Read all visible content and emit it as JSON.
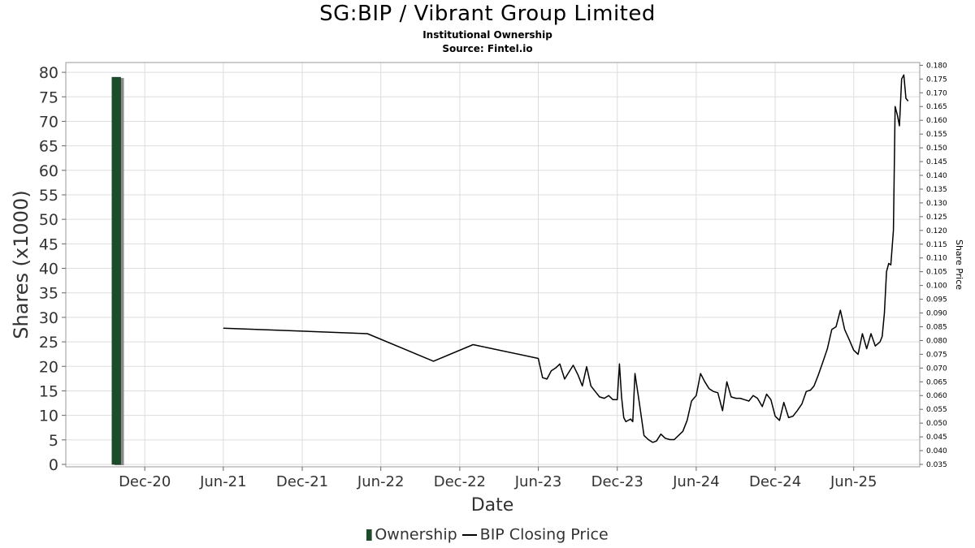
{
  "chart_data": {
    "type": "bar+line",
    "title": "SG:BIP / Vibrant Group Limited",
    "subtitle": "Institutional Ownership",
    "source": "Source: Fintel.io",
    "xlabel": "Date",
    "ylabel_left": "Shares (x1000)",
    "ylabel_right": "Share Price",
    "ylim_left": [
      0,
      82
    ],
    "ylim_right": [
      0.035,
      0.181
    ],
    "yticks_left": [
      "0",
      "5",
      "10",
      "15",
      "20",
      "25",
      "30",
      "35",
      "40",
      "45",
      "50",
      "55",
      "60",
      "65",
      "70",
      "75",
      "80"
    ],
    "yticks_right": [
      "0.035",
      "0.040",
      "0.045",
      "0.050",
      "0.055",
      "0.060",
      "0.065",
      "0.070",
      "0.075",
      "0.080",
      "0.085",
      "0.090",
      "0.095",
      "0.100",
      "0.105",
      "0.110",
      "0.115",
      "0.120",
      "0.125",
      "0.130",
      "0.135",
      "0.140",
      "0.145",
      "0.150",
      "0.155",
      "0.160",
      "0.165",
      "0.170",
      "0.175",
      "0.180"
    ],
    "xlim": [
      "2020-06-01",
      "2025-11-01"
    ],
    "xticks": [
      {
        "date": "2020-12-01",
        "label": "Dec-20"
      },
      {
        "date": "2021-06-01",
        "label": "Jun-21"
      },
      {
        "date": "2021-12-01",
        "label": "Dec-21"
      },
      {
        "date": "2022-06-01",
        "label": "Jun-22"
      },
      {
        "date": "2022-12-01",
        "label": "Dec-22"
      },
      {
        "date": "2023-06-01",
        "label": "Jun-23"
      },
      {
        "date": "2023-12-01",
        "label": "Dec-23"
      },
      {
        "date": "2024-06-01",
        "label": "Jun-24"
      },
      {
        "date": "2024-12-01",
        "label": "Dec-24"
      },
      {
        "date": "2025-06-01",
        "label": "Jun-25"
      }
    ],
    "grid": true,
    "legend_position": "bottom",
    "series": [
      {
        "name": "Ownership",
        "kind": "bar",
        "color": "#1b4d2a",
        "points": [
          {
            "start": "2020-09-16",
            "end": "2020-10-08",
            "value": 79
          }
        ]
      },
      {
        "name": "BIP Closing Price",
        "kind": "line",
        "color": "#000000",
        "points": [
          [
            "2021-06-01",
            0.0845
          ],
          [
            "2022-05-01",
            0.0825
          ],
          [
            "2022-10-01",
            0.0725
          ],
          [
            "2023-01-01",
            0.0785
          ],
          [
            "2023-06-01",
            0.0735
          ],
          [
            "2023-06-11",
            0.0665
          ],
          [
            "2023-06-21",
            0.066
          ],
          [
            "2023-07-01",
            0.069
          ],
          [
            "2023-07-11",
            0.07
          ],
          [
            "2023-07-21",
            0.0715
          ],
          [
            "2023-08-01",
            0.066
          ],
          [
            "2023-08-21",
            0.071
          ],
          [
            "2023-09-01",
            0.0675
          ],
          [
            "2023-09-11",
            0.0635
          ],
          [
            "2023-09-21",
            0.0705
          ],
          [
            "2023-10-01",
            0.0635
          ],
          [
            "2023-10-11",
            0.0615
          ],
          [
            "2023-10-21",
            0.0595
          ],
          [
            "2023-11-01",
            0.059
          ],
          [
            "2023-11-11",
            0.06
          ],
          [
            "2023-11-21",
            0.0585
          ],
          [
            "2023-12-01",
            0.0585
          ],
          [
            "2023-12-06",
            0.0715
          ],
          [
            "2023-12-11",
            0.0595
          ],
          [
            "2023-12-16",
            0.052
          ],
          [
            "2023-12-21",
            0.0505
          ],
          [
            "2024-01-01",
            0.0515
          ],
          [
            "2024-01-06",
            0.0505
          ],
          [
            "2024-01-11",
            0.068
          ],
          [
            "2024-01-21",
            0.0575
          ],
          [
            "2024-02-01",
            0.0455
          ],
          [
            "2024-02-11",
            0.044
          ],
          [
            "2024-02-21",
            0.043
          ],
          [
            "2024-03-01",
            0.0435
          ],
          [
            "2024-03-11",
            0.046
          ],
          [
            "2024-03-21",
            0.0445
          ],
          [
            "2024-04-01",
            0.044
          ],
          [
            "2024-04-11",
            0.044
          ],
          [
            "2024-05-01",
            0.047
          ],
          [
            "2024-05-11",
            0.051
          ],
          [
            "2024-05-21",
            0.058
          ],
          [
            "2024-06-01",
            0.06
          ],
          [
            "2024-06-11",
            0.068
          ],
          [
            "2024-06-21",
            0.065
          ],
          [
            "2024-07-01",
            0.0625
          ],
          [
            "2024-07-11",
            0.0615
          ],
          [
            "2024-07-21",
            0.061
          ],
          [
            "2024-08-01",
            0.0545
          ],
          [
            "2024-08-11",
            0.065
          ],
          [
            "2024-08-21",
            0.0595
          ],
          [
            "2024-09-01",
            0.059
          ],
          [
            "2024-09-11",
            0.059
          ],
          [
            "2024-09-21",
            0.0585
          ],
          [
            "2024-10-01",
            0.058
          ],
          [
            "2024-10-11",
            0.06
          ],
          [
            "2024-10-21",
            0.059
          ],
          [
            "2024-11-01",
            0.056
          ],
          [
            "2024-11-11",
            0.0605
          ],
          [
            "2024-11-21",
            0.0585
          ],
          [
            "2024-12-01",
            0.0525
          ],
          [
            "2024-12-11",
            0.051
          ],
          [
            "2024-12-21",
            0.0575
          ],
          [
            "2025-01-01",
            0.052
          ],
          [
            "2025-01-11",
            0.0525
          ],
          [
            "2025-01-21",
            0.0545
          ],
          [
            "2025-02-01",
            0.057
          ],
          [
            "2025-02-11",
            0.0615
          ],
          [
            "2025-02-21",
            0.062
          ],
          [
            "2025-03-01",
            0.0635
          ],
          [
            "2025-03-11",
            0.0675
          ],
          [
            "2025-03-21",
            0.072
          ],
          [
            "2025-04-01",
            0.077
          ],
          [
            "2025-04-11",
            0.084
          ],
          [
            "2025-04-21",
            0.085
          ],
          [
            "2025-05-01",
            0.091
          ],
          [
            "2025-05-11",
            0.084
          ],
          [
            "2025-05-21",
            0.0805
          ],
          [
            "2025-06-01",
            0.0765
          ],
          [
            "2025-06-11",
            0.075
          ],
          [
            "2025-06-21",
            0.0825
          ],
          [
            "2025-07-01",
            0.077
          ],
          [
            "2025-07-11",
            0.0825
          ],
          [
            "2025-07-21",
            0.078
          ],
          [
            "2025-08-01",
            0.0795
          ],
          [
            "2025-08-06",
            0.0815
          ],
          [
            "2025-08-11",
            0.09
          ],
          [
            "2025-08-16",
            0.105
          ],
          [
            "2025-08-21",
            0.108
          ],
          [
            "2025-08-26",
            0.1075
          ],
          [
            "2025-09-01",
            0.12
          ],
          [
            "2025-09-05",
            0.165
          ],
          [
            "2025-09-10",
            0.162
          ],
          [
            "2025-09-15",
            0.158
          ],
          [
            "2025-09-20",
            0.175
          ],
          [
            "2025-09-25",
            0.1765
          ],
          [
            "2025-09-30",
            0.168
          ],
          [
            "2025-10-05",
            0.167
          ]
        ]
      }
    ]
  }
}
